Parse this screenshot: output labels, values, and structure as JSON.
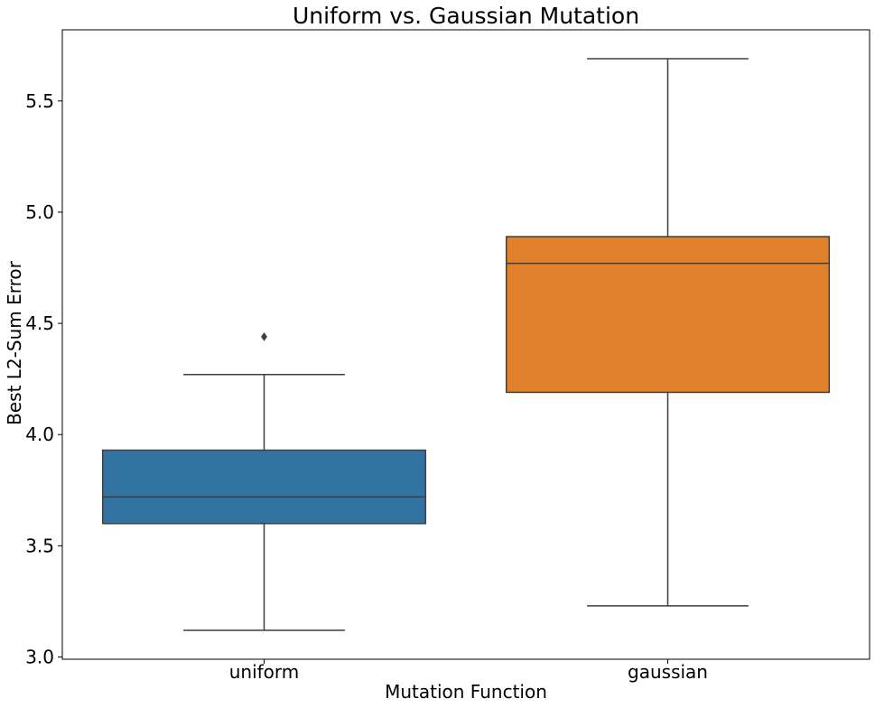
{
  "chart_data": {
    "type": "box",
    "title": "Uniform vs. Gaussian Mutation",
    "xlabel": "Mutation Function",
    "ylabel": "Best L2-Sum Error",
    "ylim": [
      2.99,
      5.82
    ],
    "yticks": [
      3.0,
      3.5,
      4.0,
      4.5,
      5.0,
      5.5
    ],
    "ytick_labels": [
      "3.0",
      "3.5",
      "4.0",
      "4.5",
      "5.0",
      "5.5"
    ],
    "grid": false,
    "legend": "none",
    "categories": [
      "uniform",
      "gaussian"
    ],
    "boxes": [
      {
        "name": "uniform",
        "whisker_low": 3.12,
        "q1": 3.6,
        "median": 3.72,
        "q3": 3.93,
        "whisker_high": 4.27,
        "outliers": [
          4.44
        ],
        "color": "#3274a1"
      },
      {
        "name": "gaussian",
        "whisker_low": 3.23,
        "q1": 4.19,
        "median": 4.77,
        "q3": 4.89,
        "whisker_high": 5.69,
        "outliers": [],
        "color": "#e1812c"
      }
    ],
    "line_color": "#3f3f3f"
  }
}
